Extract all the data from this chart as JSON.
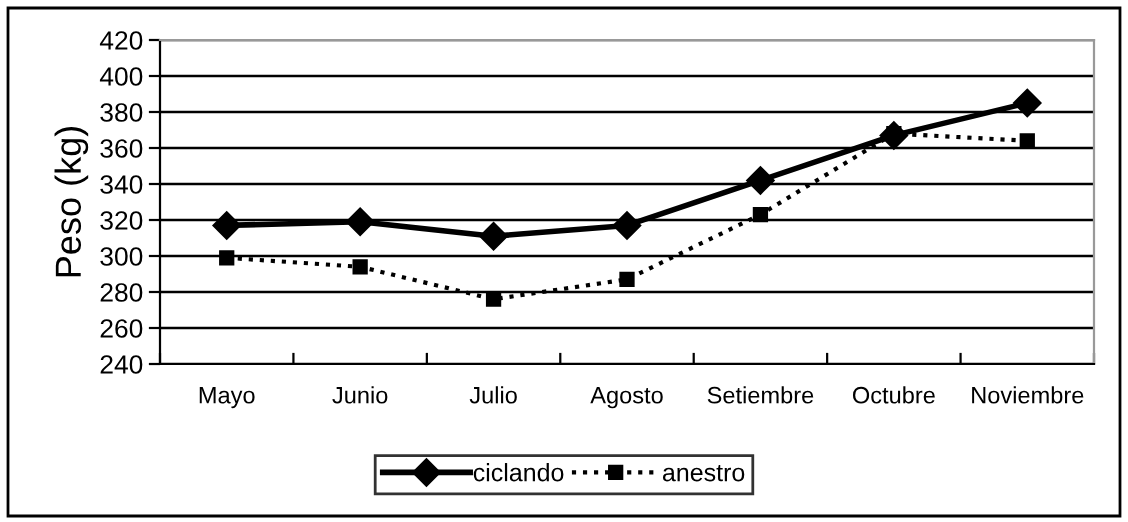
{
  "chart_data": {
    "type": "line",
    "ylabel": "Peso (kg)",
    "categories": [
      "Mayo",
      "Junio",
      "Julio",
      "Agosto",
      "Setiembre",
      "Octubre",
      "Noviembre"
    ],
    "series": [
      {
        "name": "ciclando",
        "color": "#000000",
        "marker": "diamond",
        "line_style": "solid",
        "values": [
          317,
          319,
          311,
          317,
          342,
          367,
          385
        ]
      },
      {
        "name": "anestro",
        "color": "#000000",
        "marker": "square",
        "line_style": "dotted",
        "values": [
          299,
          294,
          276,
          287,
          323,
          368,
          364
        ]
      }
    ],
    "ylim": [
      240,
      420
    ],
    "yticks": [
      240,
      260,
      280,
      300,
      320,
      340,
      360,
      380,
      400,
      420
    ],
    "grid": "y",
    "legend": "bottom"
  }
}
